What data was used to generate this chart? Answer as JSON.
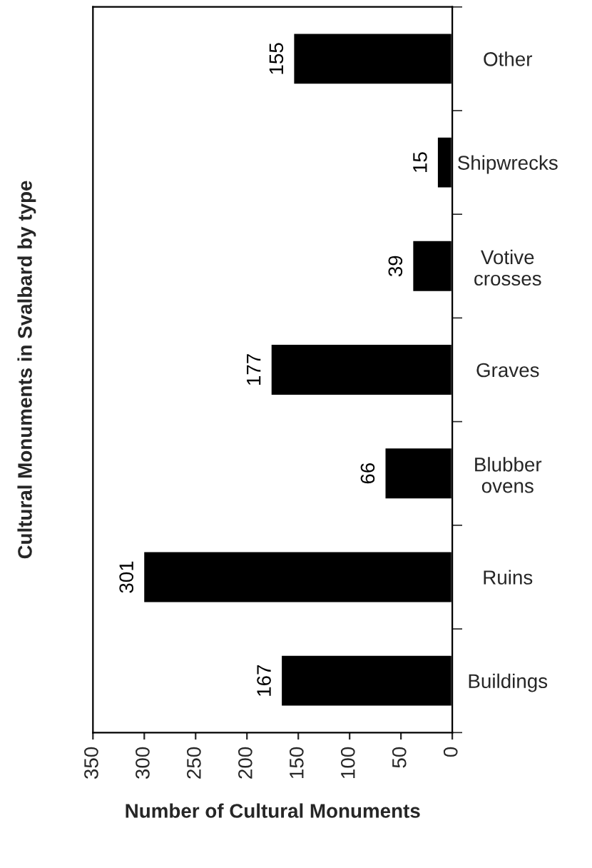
{
  "chart_data": {
    "type": "bar",
    "orientation": "horizontal",
    "title": "Cultural Monuments in Svalbard by type",
    "xlabel": "Number of Cultural Monuments",
    "categories": [
      "Other",
      "Shipwrecks",
      "Votive\ncrosses",
      "Graves",
      "Blubber\novens",
      "Ruins",
      "Buildings"
    ],
    "values": [
      155,
      15,
      39,
      177,
      66,
      301,
      167
    ],
    "color": "#000000",
    "data_labels": true,
    "xlim": [
      350,
      0
    ],
    "xticks": [
      350,
      300,
      250,
      200,
      150,
      100,
      50,
      0
    ],
    "grid": false,
    "legend": false
  }
}
